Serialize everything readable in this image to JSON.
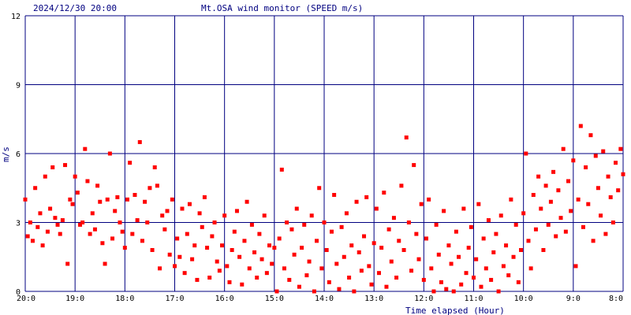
{
  "header": {
    "timestamp": "2024/12/30 20:00",
    "title": "Mt.OSA wind monitor (SPEED m/s)"
  },
  "colors": {
    "grid": "#000080",
    "points": "#ff0000",
    "text": "#000080"
  },
  "chart_data": {
    "type": "scatter",
    "title": "Mt.OSA wind monitor (SPEED m/s)",
    "xlabel": "Time elapsed (Hour)",
    "ylabel": "m/s",
    "xlim": [
      0,
      12
    ],
    "ylim": [
      0,
      12
    ],
    "x_direction": "hours elapsed before 2024/12/30 20:00 (left edge = 20:00, right edge = 8:00)",
    "x_ticks": [
      0,
      1,
      2,
      3,
      4,
      5,
      6,
      7,
      8,
      9,
      10,
      11,
      12
    ],
    "x_tick_labels": [
      "20:0",
      "19:0",
      "18:0",
      "17:0",
      "16:0",
      "15:0",
      "14:0",
      "13:0",
      "12:0",
      "11:0",
      "10:0",
      "9:0",
      "8:0"
    ],
    "y_ticks": [
      0,
      3,
      6,
      9,
      12
    ],
    "y_tick_labels": [
      "0",
      "3",
      "6",
      "9",
      "12"
    ],
    "grid": true,
    "points": [
      [
        0.0,
        4.0
      ],
      [
        0.05,
        2.4
      ],
      [
        0.1,
        3.0
      ],
      [
        0.15,
        2.2
      ],
      [
        0.2,
        4.5
      ],
      [
        0.25,
        2.8
      ],
      [
        0.3,
        3.4
      ],
      [
        0.35,
        2.0
      ],
      [
        0.4,
        5.0
      ],
      [
        0.45,
        2.6
      ],
      [
        0.5,
        3.6
      ],
      [
        0.55,
        5.4
      ],
      [
        0.6,
        3.2
      ],
      [
        0.65,
        2.9
      ],
      [
        0.7,
        2.5
      ],
      [
        0.75,
        3.1
      ],
      [
        0.8,
        5.5
      ],
      [
        0.85,
        1.2
      ],
      [
        0.9,
        4.0
      ],
      [
        0.95,
        3.8
      ],
      [
        1.0,
        5.0
      ],
      [
        1.05,
        4.3
      ],
      [
        1.1,
        2.9
      ],
      [
        1.15,
        3.0
      ],
      [
        1.2,
        6.2
      ],
      [
        1.25,
        4.8
      ],
      [
        1.3,
        2.5
      ],
      [
        1.35,
        3.4
      ],
      [
        1.4,
        2.7
      ],
      [
        1.45,
        4.6
      ],
      [
        1.5,
        3.9
      ],
      [
        1.55,
        2.1
      ],
      [
        1.6,
        1.2
      ],
      [
        1.65,
        4.0
      ],
      [
        1.7,
        6.0
      ],
      [
        1.75,
        2.3
      ],
      [
        1.8,
        3.5
      ],
      [
        1.85,
        4.1
      ],
      [
        1.9,
        3.0
      ],
      [
        1.95,
        2.6
      ],
      [
        2.0,
        1.9
      ],
      [
        2.05,
        4.0
      ],
      [
        2.1,
        5.6
      ],
      [
        2.15,
        2.5
      ],
      [
        2.2,
        4.2
      ],
      [
        2.25,
        3.1
      ],
      [
        2.3,
        6.5
      ],
      [
        2.35,
        2.2
      ],
      [
        2.4,
        3.9
      ],
      [
        2.45,
        3.0
      ],
      [
        2.5,
        4.5
      ],
      [
        2.55,
        1.8
      ],
      [
        2.6,
        5.4
      ],
      [
        2.65,
        4.6
      ],
      [
        2.7,
        1.0
      ],
      [
        2.75,
        3.3
      ],
      [
        2.8,
        2.7
      ],
      [
        2.85,
        3.5
      ],
      [
        2.9,
        1.6
      ],
      [
        2.95,
        4.0
      ],
      [
        3.0,
        1.1
      ],
      [
        3.05,
        2.3
      ],
      [
        3.1,
        1.5
      ],
      [
        3.15,
        3.6
      ],
      [
        3.2,
        0.8
      ],
      [
        3.25,
        2.5
      ],
      [
        3.3,
        3.8
      ],
      [
        3.35,
        1.4
      ],
      [
        3.4,
        2.0
      ],
      [
        3.45,
        0.5
      ],
      [
        3.5,
        3.4
      ],
      [
        3.55,
        2.8
      ],
      [
        3.6,
        4.1
      ],
      [
        3.65,
        1.9
      ],
      [
        3.7,
        0.6
      ],
      [
        3.75,
        2.4
      ],
      [
        3.8,
        3.0
      ],
      [
        3.85,
        1.3
      ],
      [
        3.9,
        0.9
      ],
      [
        3.95,
        2.0
      ],
      [
        4.0,
        3.3
      ],
      [
        4.05,
        1.1
      ],
      [
        4.1,
        0.4
      ],
      [
        4.15,
        1.8
      ],
      [
        4.2,
        2.6
      ],
      [
        4.25,
        3.5
      ],
      [
        4.3,
        1.5
      ],
      [
        4.35,
        0.3
      ],
      [
        4.4,
        2.2
      ],
      [
        4.45,
        3.9
      ],
      [
        4.5,
        1.0
      ],
      [
        4.55,
        2.9
      ],
      [
        4.6,
        1.7
      ],
      [
        4.65,
        0.6
      ],
      [
        4.7,
        2.5
      ],
      [
        4.75,
        1.4
      ],
      [
        4.8,
        3.3
      ],
      [
        4.85,
        0.8
      ],
      [
        4.9,
        2.0
      ],
      [
        4.95,
        1.2
      ],
      [
        5.0,
        1.9
      ],
      [
        5.05,
        0.0
      ],
      [
        5.1,
        2.3
      ],
      [
        5.15,
        5.3
      ],
      [
        5.2,
        1.0
      ],
      [
        5.25,
        3.0
      ],
      [
        5.3,
        0.5
      ],
      [
        5.35,
        2.7
      ],
      [
        5.4,
        1.6
      ],
      [
        5.45,
        3.6
      ],
      [
        5.5,
        0.2
      ],
      [
        5.55,
        1.9
      ],
      [
        5.6,
        2.9
      ],
      [
        5.65,
        0.7
      ],
      [
        5.7,
        1.3
      ],
      [
        5.75,
        3.3
      ],
      [
        5.8,
        0.0
      ],
      [
        5.85,
        2.2
      ],
      [
        5.9,
        4.5
      ],
      [
        5.95,
        1.0
      ],
      [
        6.0,
        3.0
      ],
      [
        6.05,
        1.8
      ],
      [
        6.1,
        0.4
      ],
      [
        6.15,
        2.6
      ],
      [
        6.2,
        4.2
      ],
      [
        6.25,
        1.2
      ],
      [
        6.3,
        0.1
      ],
      [
        6.35,
        2.8
      ],
      [
        6.4,
        1.5
      ],
      [
        6.45,
        3.4
      ],
      [
        6.5,
        0.6
      ],
      [
        6.55,
        2.0
      ],
      [
        6.6,
        0.0
      ],
      [
        6.65,
        3.9
      ],
      [
        6.7,
        1.7
      ],
      [
        6.75,
        0.9
      ],
      [
        6.8,
        2.4
      ],
      [
        6.85,
        4.1
      ],
      [
        6.9,
        1.1
      ],
      [
        6.95,
        0.3
      ],
      [
        7.0,
        2.1
      ],
      [
        7.05,
        3.6
      ],
      [
        7.1,
        0.8
      ],
      [
        7.15,
        1.9
      ],
      [
        7.2,
        4.3
      ],
      [
        7.25,
        0.2
      ],
      [
        7.3,
        2.7
      ],
      [
        7.35,
        1.3
      ],
      [
        7.4,
        3.2
      ],
      [
        7.45,
        0.6
      ],
      [
        7.5,
        2.2
      ],
      [
        7.55,
        4.6
      ],
      [
        7.6,
        1.8
      ],
      [
        7.65,
        6.7
      ],
      [
        7.7,
        3.0
      ],
      [
        7.75,
        0.9
      ],
      [
        7.8,
        5.5
      ],
      [
        7.85,
        2.5
      ],
      [
        7.9,
        1.4
      ],
      [
        7.95,
        3.8
      ],
      [
        8.0,
        0.5
      ],
      [
        8.05,
        2.3
      ],
      [
        8.1,
        4.0
      ],
      [
        8.15,
        1.0
      ],
      [
        8.2,
        0.0
      ],
      [
        8.25,
        2.9
      ],
      [
        8.3,
        1.6
      ],
      [
        8.35,
        0.4
      ],
      [
        8.4,
        3.5
      ],
      [
        8.45,
        0.1
      ],
      [
        8.5,
        2.0
      ],
      [
        8.55,
        1.2
      ],
      [
        8.6,
        0.0
      ],
      [
        8.65,
        2.6
      ],
      [
        8.7,
        1.5
      ],
      [
        8.75,
        0.3
      ],
      [
        8.8,
        3.6
      ],
      [
        8.85,
        0.8
      ],
      [
        8.9,
        1.9
      ],
      [
        8.95,
        2.8
      ],
      [
        9.0,
        0.6
      ],
      [
        9.05,
        1.4
      ],
      [
        9.1,
        3.8
      ],
      [
        9.15,
        0.2
      ],
      [
        9.2,
        2.3
      ],
      [
        9.25,
        1.0
      ],
      [
        9.3,
        3.1
      ],
      [
        9.35,
        0.5
      ],
      [
        9.4,
        1.7
      ],
      [
        9.45,
        2.5
      ],
      [
        9.5,
        0.0
      ],
      [
        9.55,
        3.3
      ],
      [
        9.6,
        1.1
      ],
      [
        9.65,
        2.0
      ],
      [
        9.7,
        0.7
      ],
      [
        9.75,
        4.0
      ],
      [
        9.8,
        1.5
      ],
      [
        9.85,
        2.9
      ],
      [
        9.9,
        0.4
      ],
      [
        9.95,
        1.8
      ],
      [
        10.0,
        3.4
      ],
      [
        10.05,
        6.0
      ],
      [
        10.1,
        2.2
      ],
      [
        10.15,
        1.0
      ],
      [
        10.2,
        4.2
      ],
      [
        10.25,
        2.7
      ],
      [
        10.3,
        5.0
      ],
      [
        10.35,
        3.6
      ],
      [
        10.4,
        1.8
      ],
      [
        10.45,
        4.6
      ],
      [
        10.5,
        2.9
      ],
      [
        10.55,
        3.9
      ],
      [
        10.6,
        5.2
      ],
      [
        10.65,
        2.4
      ],
      [
        10.7,
        4.4
      ],
      [
        10.75,
        3.2
      ],
      [
        10.8,
        6.2
      ],
      [
        10.85,
        2.6
      ],
      [
        10.9,
        4.8
      ],
      [
        10.95,
        3.5
      ],
      [
        11.0,
        5.7
      ],
      [
        11.05,
        1.1
      ],
      [
        11.1,
        4.0
      ],
      [
        11.15,
        7.2
      ],
      [
        11.2,
        2.8
      ],
      [
        11.25,
        5.4
      ],
      [
        11.3,
        3.8
      ],
      [
        11.35,
        6.8
      ],
      [
        11.4,
        2.2
      ],
      [
        11.45,
        5.9
      ],
      [
        11.5,
        4.5
      ],
      [
        11.55,
        3.3
      ],
      [
        11.6,
        6.1
      ],
      [
        11.65,
        2.5
      ],
      [
        11.7,
        5.0
      ],
      [
        11.75,
        4.1
      ],
      [
        11.8,
        3.0
      ],
      [
        11.85,
        5.6
      ],
      [
        11.9,
        4.4
      ],
      [
        11.95,
        6.2
      ],
      [
        12.0,
        5.1
      ]
    ]
  }
}
